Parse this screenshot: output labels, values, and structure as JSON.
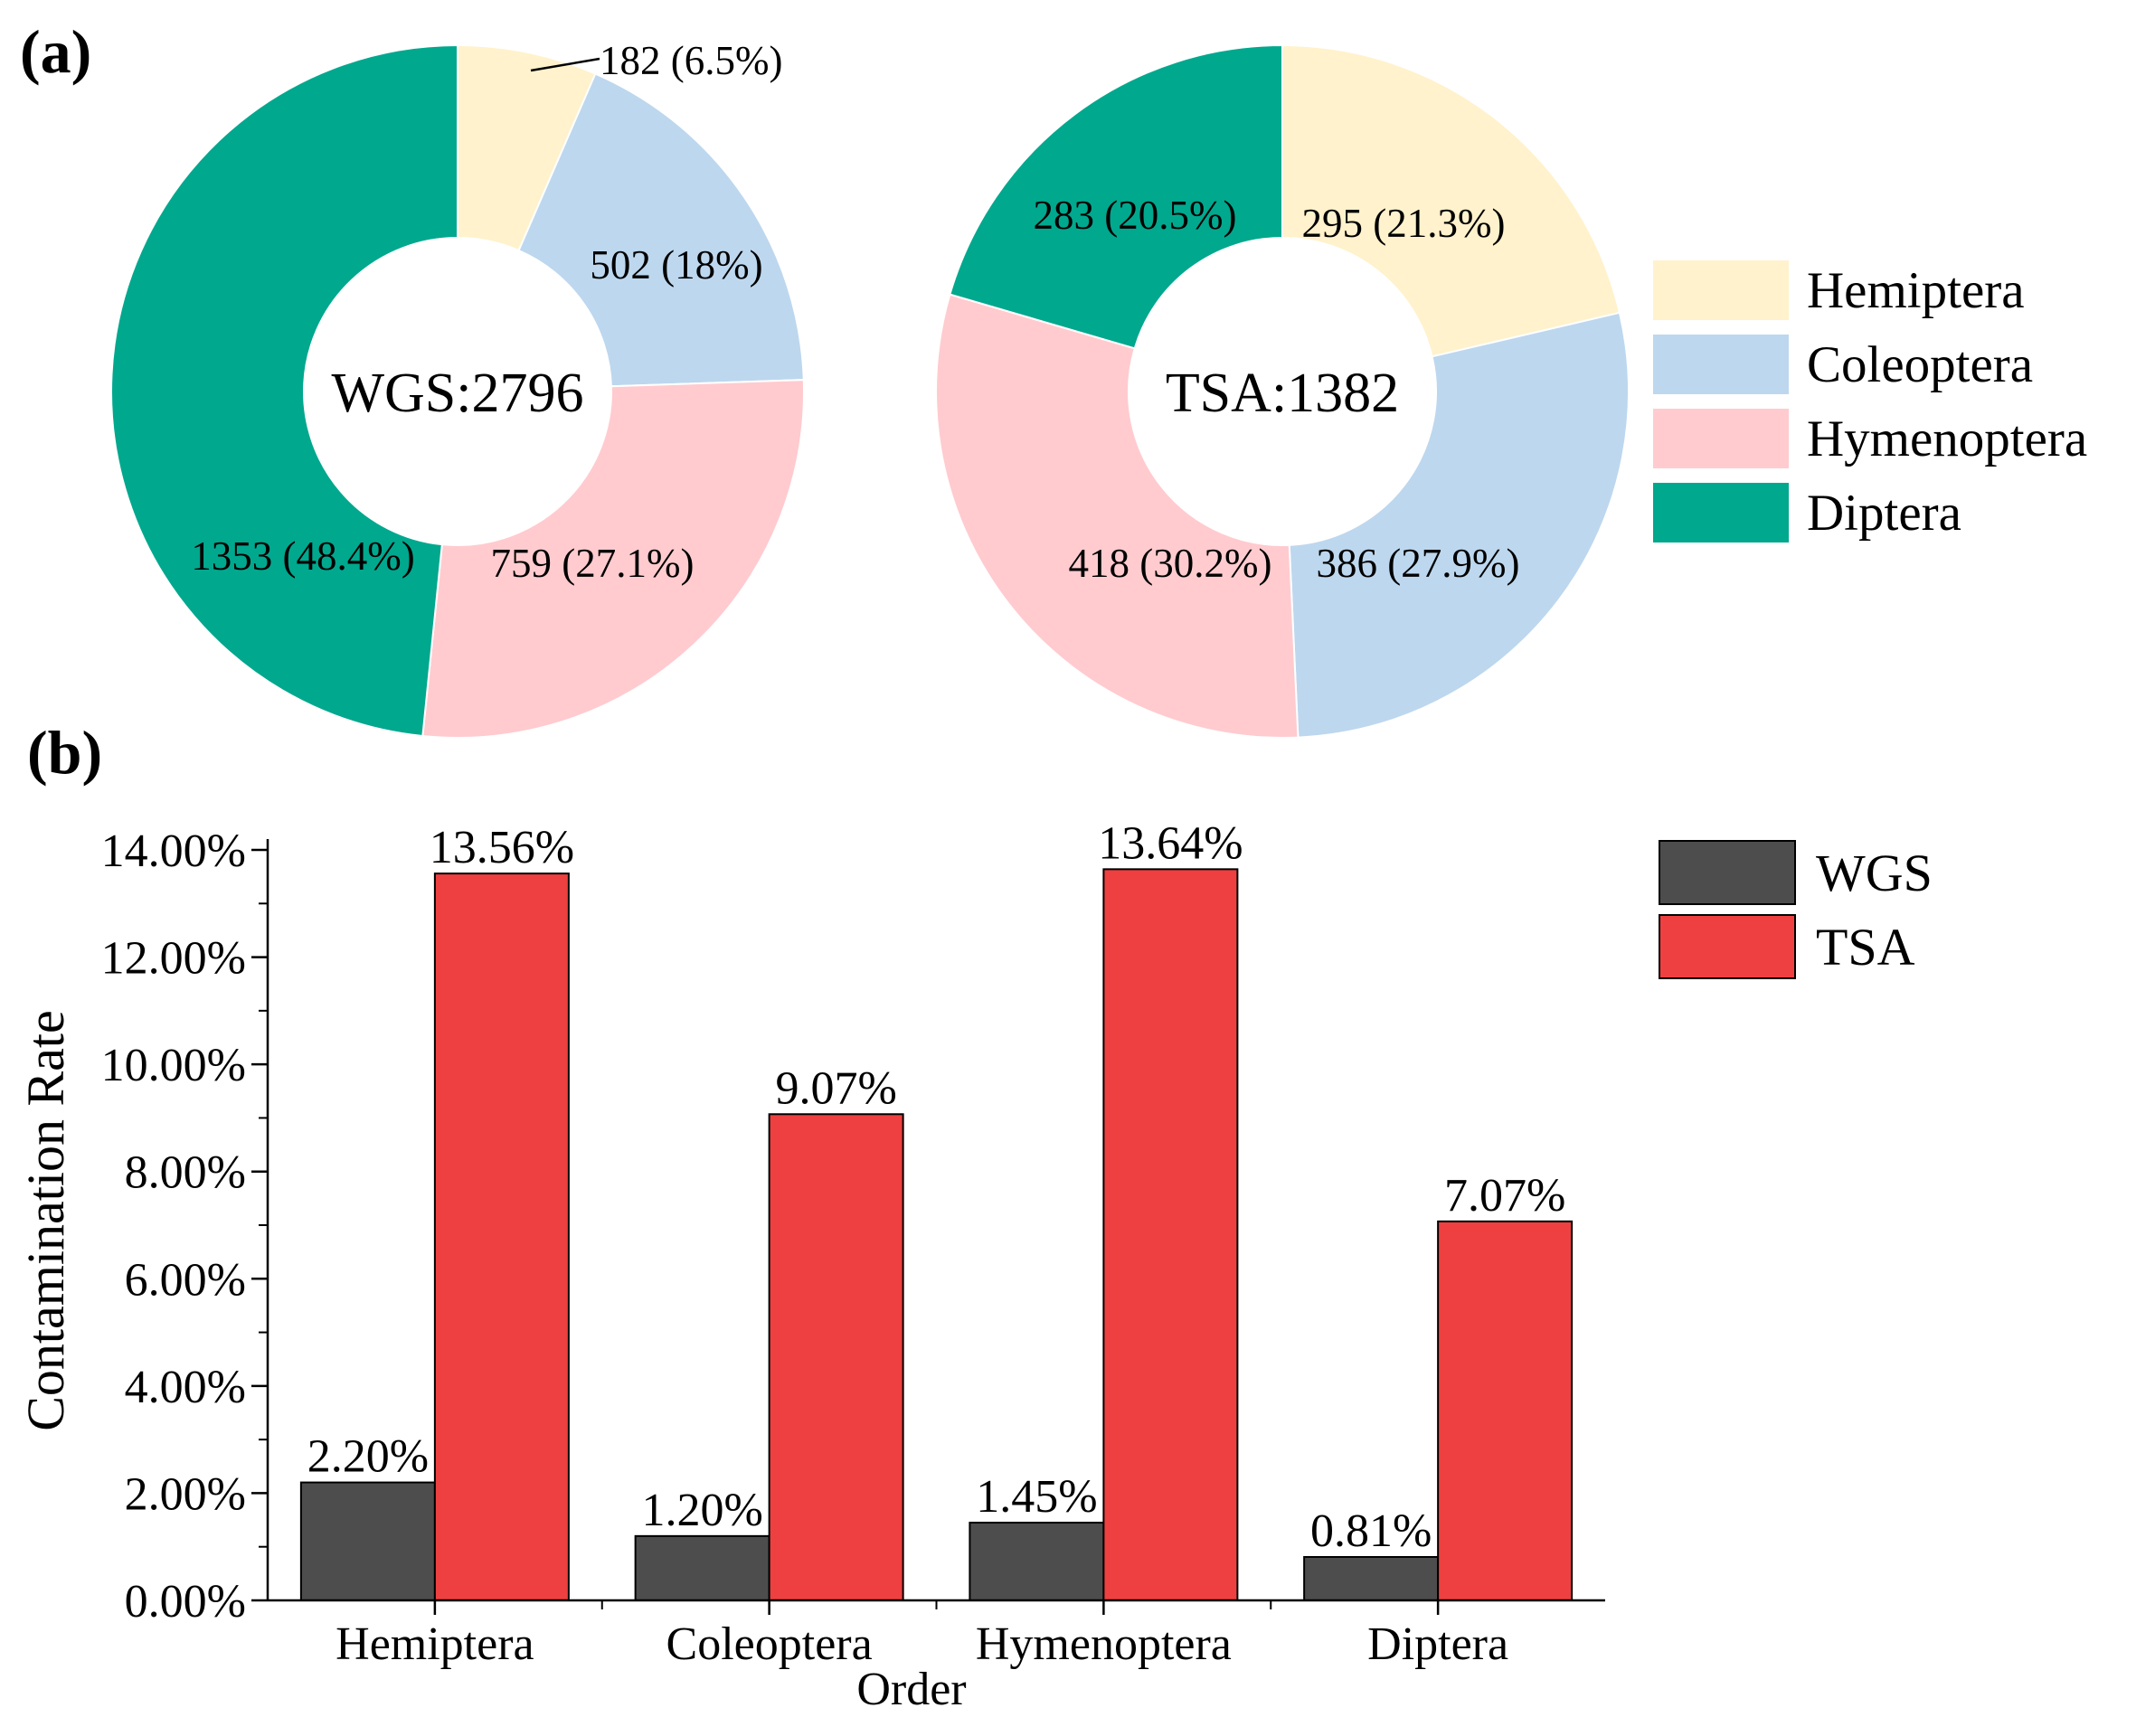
{
  "panel_labels": {
    "a": "(a)",
    "b": "(b)"
  },
  "legend_orders": [
    "Hemiptera",
    "Coleoptera",
    "Hymenoptera",
    "Diptera"
  ],
  "legend_sources": [
    "WGS",
    "TSA"
  ],
  "colors": {
    "Hemiptera": "#FFF2CC",
    "Coleoptera": "#BDD7EE",
    "Hymenoptera": "#FFCBCF",
    "Diptera": "#00A88E",
    "WGS": "#4D4D4D",
    "TSA": "#EE4040"
  },
  "chart_data": [
    {
      "type": "pie",
      "variant": "donut",
      "center_label": "WGS:2796",
      "slices": [
        {
          "name": "Hemiptera",
          "value": 182,
          "label": "182 (6.5%)"
        },
        {
          "name": "Coleoptera",
          "value": 502,
          "label": "502 (18%)"
        },
        {
          "name": "Hymenoptera",
          "value": 759,
          "label": "759 (27.1%)"
        },
        {
          "name": "Diptera",
          "value": 1353,
          "label": "1353 (48.4%)"
        }
      ]
    },
    {
      "type": "pie",
      "variant": "donut",
      "center_label": "TSA:1382",
      "slices": [
        {
          "name": "Hemiptera",
          "value": 295,
          "label": "295 (21.3%)"
        },
        {
          "name": "Coleoptera",
          "value": 386,
          "label": "386 (27.9%)"
        },
        {
          "name": "Hymenoptera",
          "value": 418,
          "label": "418 (30.2%)"
        },
        {
          "name": "Diptera",
          "value": 283,
          "label": "283 (20.5%)"
        }
      ],
      "legend": "right"
    },
    {
      "type": "bar",
      "categories": [
        "Hemiptera",
        "Coleoptera",
        "Hymenoptera",
        "Diptera"
      ],
      "series": [
        {
          "name": "WGS",
          "values": [
            2.2,
            1.2,
            1.45,
            0.81
          ],
          "labels": [
            "2.20%",
            "1.20%",
            "1.45%",
            "0.81%"
          ]
        },
        {
          "name": "TSA",
          "values": [
            13.56,
            9.07,
            13.64,
            7.07
          ],
          "labels": [
            "13.56%",
            "9.07%",
            "13.64%",
            "7.07%"
          ]
        }
      ],
      "xlabel": "Order",
      "ylabel": "Contamination Rate",
      "ylim": [
        0,
        14
      ],
      "yticks": [
        "0.00%",
        "2.00%",
        "4.00%",
        "6.00%",
        "8.00%",
        "10.00%",
        "12.00%",
        "14.00%"
      ],
      "grid": false,
      "legend": "top-right"
    }
  ]
}
